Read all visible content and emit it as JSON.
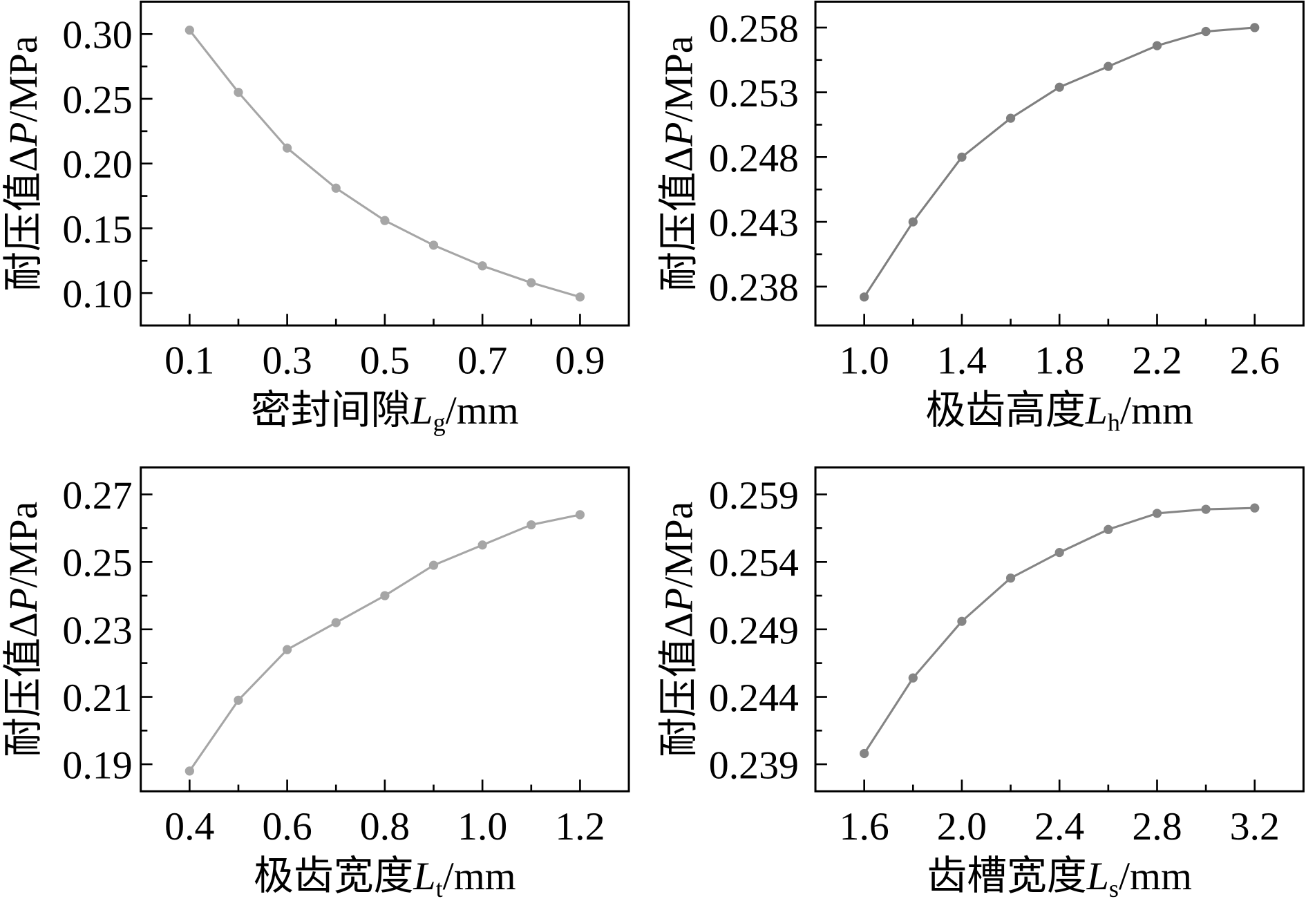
{
  "chart_data": [
    {
      "type": "line",
      "xlabel": {
        "text": "密封间隙",
        "symbol": "L",
        "subscript": "g",
        "unit": "/mm"
      },
      "ylabel": {
        "text": "耐压值Δ",
        "symbol": "P",
        "unit": "/MPa"
      },
      "x": [
        0.1,
        0.2,
        0.3,
        0.4,
        0.5,
        0.6,
        0.7,
        0.8,
        0.9
      ],
      "series": [
        {
          "values": [
            0.303,
            0.255,
            0.212,
            0.181,
            0.156,
            0.137,
            0.121,
            0.108,
            0.097
          ],
          "color": "#a6a6a6"
        }
      ],
      "xlim": [
        0.0,
        1.0
      ],
      "ylim": [
        0.075,
        0.325
      ],
      "xticks": [
        0.1,
        0.3,
        0.5,
        0.7,
        0.9
      ],
      "xtick_labels": [
        "0.1",
        "0.3",
        "0.5",
        "0.7",
        "0.9"
      ],
      "xminor": [
        0.2,
        0.4,
        0.6,
        0.8
      ],
      "yticks": [
        0.3,
        0.25,
        0.2,
        0.15,
        0.1
      ],
      "ytick_labels": [
        "0.30",
        "0.25",
        "0.20",
        "0.15",
        "0.10"
      ],
      "yminor": [
        0.275,
        0.225,
        0.175,
        0.125
      ],
      "grid": false
    },
    {
      "type": "line",
      "xlabel": {
        "text": "极齿高度",
        "symbol": "L",
        "subscript": "h",
        "unit": "/mm"
      },
      "ylabel": {
        "text": "耐压值Δ",
        "symbol": "P",
        "unit": "/MPa"
      },
      "x": [
        1.0,
        1.2,
        1.4,
        1.6,
        1.8,
        2.0,
        2.2,
        2.4,
        2.6
      ],
      "series": [
        {
          "values": [
            0.2372,
            0.243,
            0.248,
            0.251,
            0.2534,
            0.255,
            0.2566,
            0.2577,
            0.258
          ],
          "color": "#7f7f7f"
        }
      ],
      "xlim": [
        0.8,
        2.8
      ],
      "ylim": [
        0.235,
        0.26
      ],
      "xticks": [
        1.0,
        1.4,
        1.8,
        2.2,
        2.6
      ],
      "xtick_labels": [
        "1.0",
        "1.4",
        "1.8",
        "2.2",
        "2.6"
      ],
      "xminor": [
        1.2,
        1.6,
        2.0,
        2.4
      ],
      "yticks": [
        0.258,
        0.253,
        0.248,
        0.243,
        0.238
      ],
      "ytick_labels": [
        "0.258",
        "0.253",
        "0.248",
        "0.243",
        "0.238"
      ],
      "yminor": [
        0.2555,
        0.2505,
        0.2455,
        0.2405
      ],
      "grid": false
    },
    {
      "type": "line",
      "xlabel": {
        "text": "极齿宽度",
        "symbol": "L",
        "subscript": "t",
        "unit": "/mm"
      },
      "ylabel": {
        "text": "耐压值Δ",
        "symbol": "P",
        "unit": "/MPa"
      },
      "x": [
        0.4,
        0.5,
        0.6,
        0.7,
        0.8,
        0.9,
        1.0,
        1.1,
        1.2
      ],
      "series": [
        {
          "values": [
            0.188,
            0.209,
            0.224,
            0.232,
            0.24,
            0.249,
            0.255,
            0.261,
            0.264
          ],
          "color": "#a6a6a6"
        }
      ],
      "xlim": [
        0.3,
        1.3
      ],
      "ylim": [
        0.182,
        0.278
      ],
      "xticks": [
        0.4,
        0.6,
        0.8,
        1.0,
        1.2
      ],
      "xtick_labels": [
        "0.4",
        "0.6",
        "0.8",
        "1.0",
        "1.2"
      ],
      "xminor": [
        0.5,
        0.7,
        0.9,
        1.1
      ],
      "yticks": [
        0.27,
        0.25,
        0.23,
        0.21,
        0.19
      ],
      "ytick_labels": [
        "0.27",
        "0.25",
        "0.23",
        "0.21",
        "0.19"
      ],
      "yminor": [
        0.26,
        0.24,
        0.22,
        0.2
      ],
      "grid": false
    },
    {
      "type": "line",
      "xlabel": {
        "text": "齿槽宽度",
        "symbol": "L",
        "subscript": "s",
        "unit": "/mm"
      },
      "ylabel": {
        "text": "耐压值Δ",
        "symbol": "P",
        "unit": "/MPa"
      },
      "x": [
        1.6,
        1.8,
        2.0,
        2.2,
        2.4,
        2.6,
        2.8,
        3.0,
        3.2
      ],
      "series": [
        {
          "values": [
            0.2398,
            0.2454,
            0.2496,
            0.2528,
            0.2547,
            0.2564,
            0.2576,
            0.2579,
            0.258
          ],
          "color": "#858585"
        }
      ],
      "xlim": [
        1.4,
        3.4
      ],
      "ylim": [
        0.237,
        0.261
      ],
      "xticks": [
        1.6,
        2.0,
        2.4,
        2.8,
        3.2
      ],
      "xtick_labels": [
        "1.6",
        "2.0",
        "2.4",
        "2.8",
        "3.2"
      ],
      "xminor": [
        1.8,
        2.2,
        2.6,
        3.0
      ],
      "yticks": [
        0.259,
        0.254,
        0.249,
        0.244,
        0.239
      ],
      "ytick_labels": [
        "0.259",
        "0.254",
        "0.249",
        "0.244",
        "0.239"
      ],
      "yminor": [
        0.2565,
        0.2515,
        0.2465,
        0.2415
      ],
      "grid": false
    }
  ]
}
